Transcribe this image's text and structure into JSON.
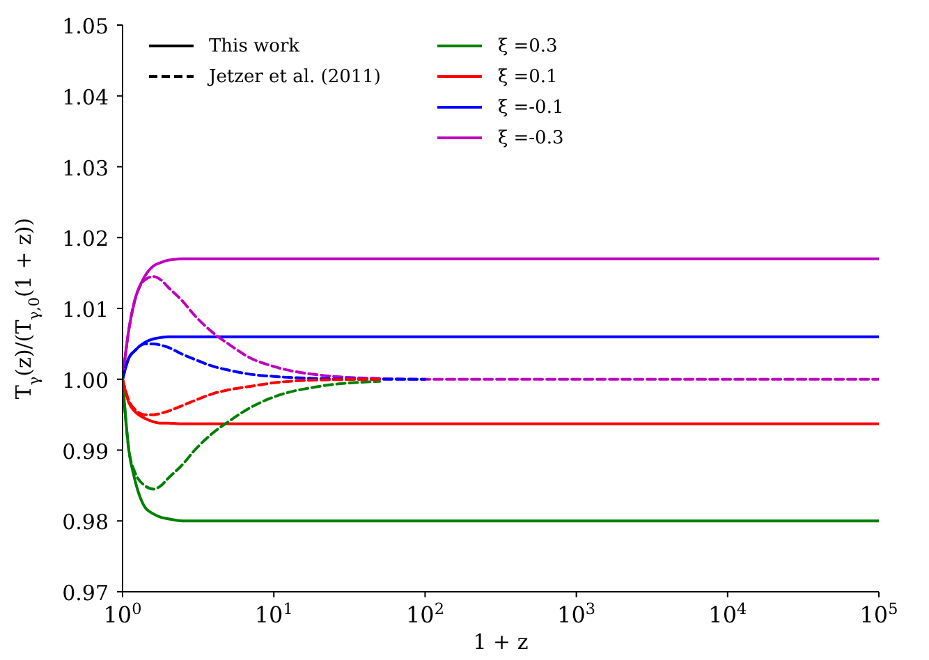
{
  "chart_data": {
    "type": "line",
    "xlabel": "1 + z",
    "ylabel": "T$_{γ}$(z)/(T$_{γ,0}$(1 + z))",
    "log": "x",
    "grid": false,
    "legend": "top left",
    "marker": "none",
    "x": [
      1,
      1.1,
      1.2,
      1.4,
      1.6,
      1.8,
      2,
      2.5,
      3,
      4,
      5,
      7,
      10,
      20,
      50,
      100,
      1000,
      100000
    ],
    "xlim": [
      1,
      100000
    ],
    "xticks": [
      {
        "value": 1,
        "label": "10$^{0}$"
      },
      {
        "value": 10,
        "label": "10$^{1}$"
      },
      {
        "value": 100,
        "label": "10$^{2}$"
      },
      {
        "value": 1000,
        "label": "10$^{3}$"
      },
      {
        "value": 10000,
        "label": "10$^{4}$"
      },
      {
        "value": 100000,
        "label": "10$^{5}$"
      }
    ],
    "ylim": [
      0.97,
      1.05
    ],
    "yticks": [
      0.97,
      0.98,
      0.99,
      {
        "value": 1,
        "label": "1.00"
      },
      1.01,
      1.02,
      1.03,
      1.04,
      1.05
    ],
    "annotations": [
      "This work",
      "Jetzer et al. (2011)"
    ],
    "series": [
      {
        "name": "ξ =0.3",
        "color": "#008000",
        "line_style": "solid",
        "values": [
          1,
          0.99,
          0.986,
          0.982,
          0.981,
          0.9805,
          0.9803,
          0.98,
          0.98,
          0.98,
          0.98,
          0.98,
          0.98,
          0.98,
          0.98,
          0.98,
          0.98,
          0.98
        ]
      },
      {
        "name": "ξ =0.1",
        "color": "#ff0000",
        "line_style": "solid",
        "values": [
          1,
          0.9967,
          0.9955,
          0.9945,
          0.994,
          0.9938,
          0.9938,
          0.9937,
          0.9937,
          0.9937,
          0.9937,
          0.9937,
          0.9937,
          0.9937,
          0.9937,
          0.9937,
          0.9937,
          0.9937
        ]
      },
      {
        "name": "ξ =-0.1",
        "color": "#0000ff",
        "line_style": "solid",
        "values": [
          1,
          1.003,
          1.004,
          1.0052,
          1.0057,
          1.0059,
          1.006,
          1.006,
          1.006,
          1.006,
          1.006,
          1.006,
          1.006,
          1.006,
          1.006,
          1.006,
          1.006,
          1.006
        ]
      },
      {
        "name": "ξ =-0.3",
        "color": "#bf00bf",
        "line_style": "solid",
        "values": [
          1,
          1.007,
          1.011,
          1.0145,
          1.016,
          1.0165,
          1.0168,
          1.017,
          1.017,
          1.017,
          1.017,
          1.017,
          1.017,
          1.017,
          1.017,
          1.017,
          1.017,
          1.017
        ]
      },
      {
        "color": "#008000",
        "line_style": "dashed",
        "values": [
          1,
          0.99,
          0.987,
          0.985,
          0.9845,
          0.985,
          0.986,
          0.988,
          0.99,
          0.9925,
          0.994,
          0.996,
          0.9975,
          0.999,
          0.9997,
          null,
          null,
          null
        ]
      },
      {
        "color": "#ff0000",
        "line_style": "dashed",
        "values": [
          1,
          0.997,
          0.9958,
          0.995,
          0.995,
          0.9952,
          0.9955,
          0.9963,
          0.997,
          0.998,
          0.9985,
          0.999,
          0.9995,
          0.9999,
          1,
          null,
          null,
          null
        ]
      },
      {
        "color": "#0000ff",
        "line_style": "dashed",
        "values": [
          1,
          1.003,
          1.004,
          1.005,
          1.005,
          1.0048,
          1.0045,
          1.0035,
          1.0028,
          1.0018,
          1.0013,
          1.0007,
          1.0004,
          1.0001,
          1,
          1,
          null,
          null
        ]
      },
      {
        "color": "#bf00bf",
        "line_style": "dashed",
        "values": [
          1,
          1.007,
          1.011,
          1.014,
          1.0145,
          1.014,
          1.013,
          1.011,
          1.009,
          1.0065,
          1.005,
          1.003,
          1.0018,
          1.0006,
          1.0001,
          1,
          1,
          1
        ]
      }
    ]
  }
}
